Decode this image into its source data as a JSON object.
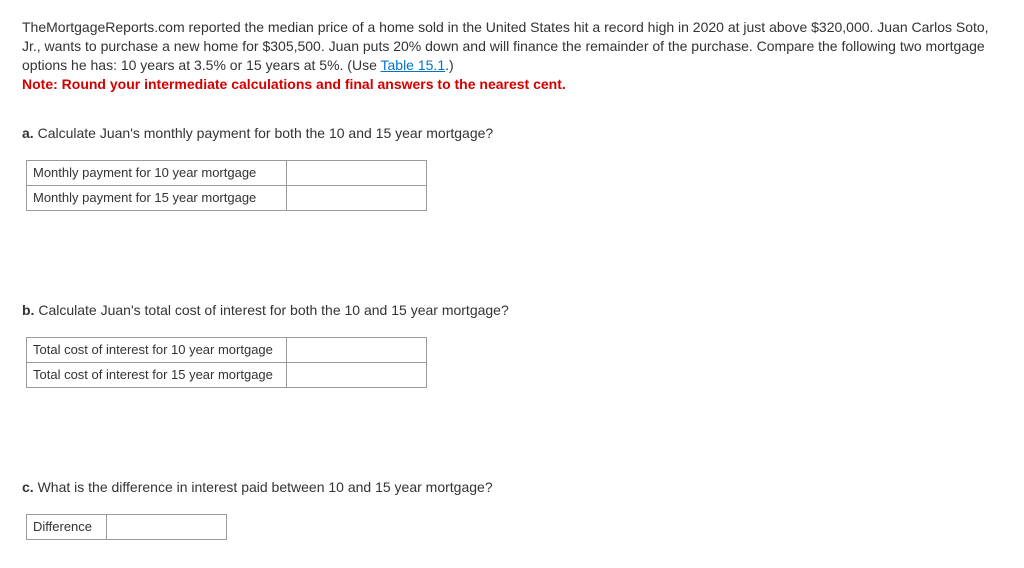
{
  "intro": {
    "text_part1": "TheMortgageReports.com reported the median price of a home sold in the United States hit a record high in 2020 at just above $320,000. Juan Carlos Soto, Jr., wants to purchase a new home for $305,500. Juan puts 20% down and will finance the remainder of the purchase. Compare the following two mortgage options he has: 10 years at 3.5% or 15 years at 5%. (Use ",
    "link_text": "Table 15.1",
    "text_part2": ".)",
    "note": "Note: Round your intermediate calculations and final answers to the nearest cent."
  },
  "a": {
    "letter": "a.",
    "prompt": " Calculate Juan's monthly payment for both the 10 and 15 year mortgage?",
    "rows": [
      "Monthly payment for 10 year mortgage",
      "Monthly payment for 15 year mortgage"
    ]
  },
  "b": {
    "letter": "b.",
    "prompt": " Calculate Juan's total cost of interest for both the 10 and 15 year mortgage?",
    "rows": [
      "Total cost of interest for 10 year mortgage",
      "Total cost of interest for 15 year mortgage"
    ]
  },
  "c": {
    "letter": "c.",
    "prompt": " What is the difference in interest paid between 10 and 15 year mortgage?",
    "rows": [
      "Difference"
    ]
  }
}
